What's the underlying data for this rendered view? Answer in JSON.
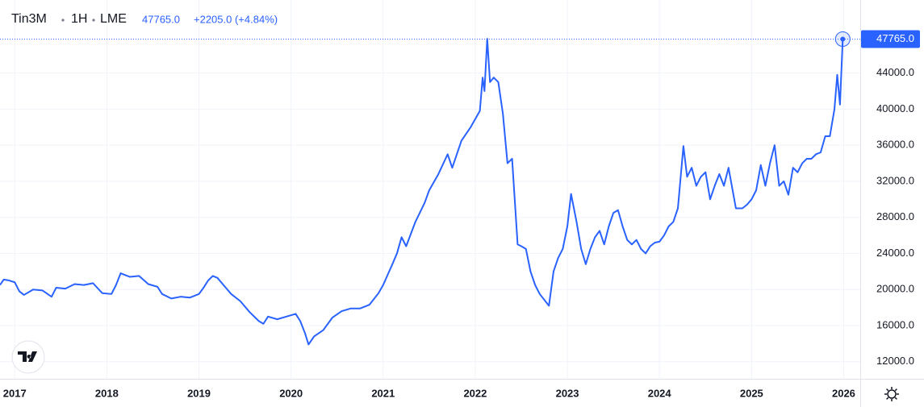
{
  "chart_data": {
    "type": "line",
    "symbol": "Tin3M",
    "interval": "1H",
    "exchange": "LME",
    "last": "47765.0",
    "change": "+2205.0 (+4.84%)",
    "color": "#2962ff",
    "grid": true,
    "xlim": [
      2016.84,
      2026.18
    ],
    "ylim": [
      10100,
      52100
    ],
    "xticks": [
      2017,
      2018,
      2019,
      2020,
      2021,
      2022,
      2023,
      2024,
      2025,
      2026
    ],
    "yticks": [
      {
        "value": 12000,
        "label": "12000.0"
      },
      {
        "value": 16000,
        "label": "16000.0"
      },
      {
        "value": 20000,
        "label": "20000.0"
      },
      {
        "value": 24000,
        "label": "24000.0"
      },
      {
        "value": 28000,
        "label": "28000.0"
      },
      {
        "value": 32000,
        "label": "32000.0"
      },
      {
        "value": 36000,
        "label": "36000.0"
      },
      {
        "value": 40000,
        "label": "40000.0"
      },
      {
        "value": 44000,
        "label": "44000.0"
      }
    ],
    "x": [
      2016.84,
      2016.88,
      2016.94,
      2017.0,
      2017.05,
      2017.1,
      2017.2,
      2017.3,
      2017.4,
      2017.45,
      2017.55,
      2017.65,
      2017.75,
      2017.85,
      2017.95,
      2018.05,
      2018.1,
      2018.15,
      2018.25,
      2018.35,
      2018.45,
      2018.55,
      2018.6,
      2018.7,
      2018.8,
      2018.9,
      2019.0,
      2019.05,
      2019.1,
      2019.15,
      2019.2,
      2019.3,
      2019.35,
      2019.45,
      2019.55,
      2019.65,
      2019.7,
      2019.75,
      2019.85,
      2019.95,
      2020.05,
      2020.1,
      2020.15,
      2020.19,
      2020.25,
      2020.35,
      2020.45,
      2020.55,
      2020.65,
      2020.75,
      2020.85,
      2020.95,
      2021.0,
      2021.1,
      2021.15,
      2021.2,
      2021.25,
      2021.35,
      2021.45,
      2021.5,
      2021.6,
      2021.7,
      2021.75,
      2021.85,
      2021.95,
      2022.05,
      2022.08,
      2022.1,
      2022.13,
      2022.16,
      2022.2,
      2022.25,
      2022.3,
      2022.35,
      2022.4,
      2022.46,
      2022.5,
      2022.55,
      2022.6,
      2022.65,
      2022.7,
      2022.8,
      2022.85,
      2022.9,
      2022.95,
      2023.0,
      2023.04,
      2023.1,
      2023.15,
      2023.2,
      2023.25,
      2023.3,
      2023.35,
      2023.4,
      2023.45,
      2023.5,
      2023.55,
      2023.6,
      2023.65,
      2023.7,
      2023.75,
      2023.8,
      2023.85,
      2023.9,
      2023.95,
      2024.0,
      2024.05,
      2024.1,
      2024.15,
      2024.2,
      2024.26,
      2024.3,
      2024.35,
      2024.4,
      2024.45,
      2024.5,
      2024.55,
      2024.6,
      2024.65,
      2024.7,
      2024.75,
      2024.83,
      2024.9,
      2024.95,
      2025.0,
      2025.05,
      2025.1,
      2025.15,
      2025.2,
      2025.25,
      2025.3,
      2025.35,
      2025.4,
      2025.45,
      2025.5,
      2025.55,
      2025.6,
      2025.65,
      2025.7,
      2025.75,
      2025.8,
      2025.85,
      2025.9,
      2025.93,
      2025.96,
      2025.99
    ],
    "values": [
      20500,
      21100,
      21000,
      20800,
      19800,
      19400,
      20000,
      19900,
      19200,
      20200,
      20100,
      20600,
      20500,
      20700,
      19600,
      19500,
      20500,
      21800,
      21400,
      21500,
      20600,
      20300,
      19500,
      19000,
      19200,
      19100,
      19500,
      20200,
      21000,
      21500,
      21300,
      20100,
      19500,
      18700,
      17500,
      16500,
      16200,
      17000,
      16700,
      17000,
      17300,
      16500,
      15200,
      13900,
      14800,
      15500,
      16900,
      17600,
      17900,
      17900,
      18300,
      19600,
      20500,
      22800,
      24000,
      25800,
      24800,
      27500,
      29600,
      31000,
      32800,
      35000,
      33500,
      36500,
      38000,
      39800,
      43500,
      42000,
      47800,
      43000,
      43500,
      43000,
      39500,
      34000,
      34500,
      25000,
      24800,
      24500,
      22000,
      20500,
      19500,
      18200,
      22000,
      23500,
      24500,
      27000,
      30600,
      27500,
      24500,
      22800,
      24500,
      25800,
      26500,
      25000,
      27000,
      28500,
      28800,
      27000,
      25500,
      25000,
      25500,
      24500,
      24000,
      24800,
      25200,
      25300,
      26000,
      27000,
      27500,
      29000,
      35900,
      32500,
      33500,
      31500,
      32500,
      33000,
      30000,
      31500,
      32800,
      31500,
      33500,
      29000,
      29000,
      29400,
      30000,
      31000,
      33800,
      31500,
      34000,
      36000,
      31500,
      32000,
      30500,
      33500,
      33000,
      34000,
      34500,
      34500,
      35000,
      35200,
      37000,
      37000,
      40000,
      43800,
      40500,
      47765
    ]
  }
}
